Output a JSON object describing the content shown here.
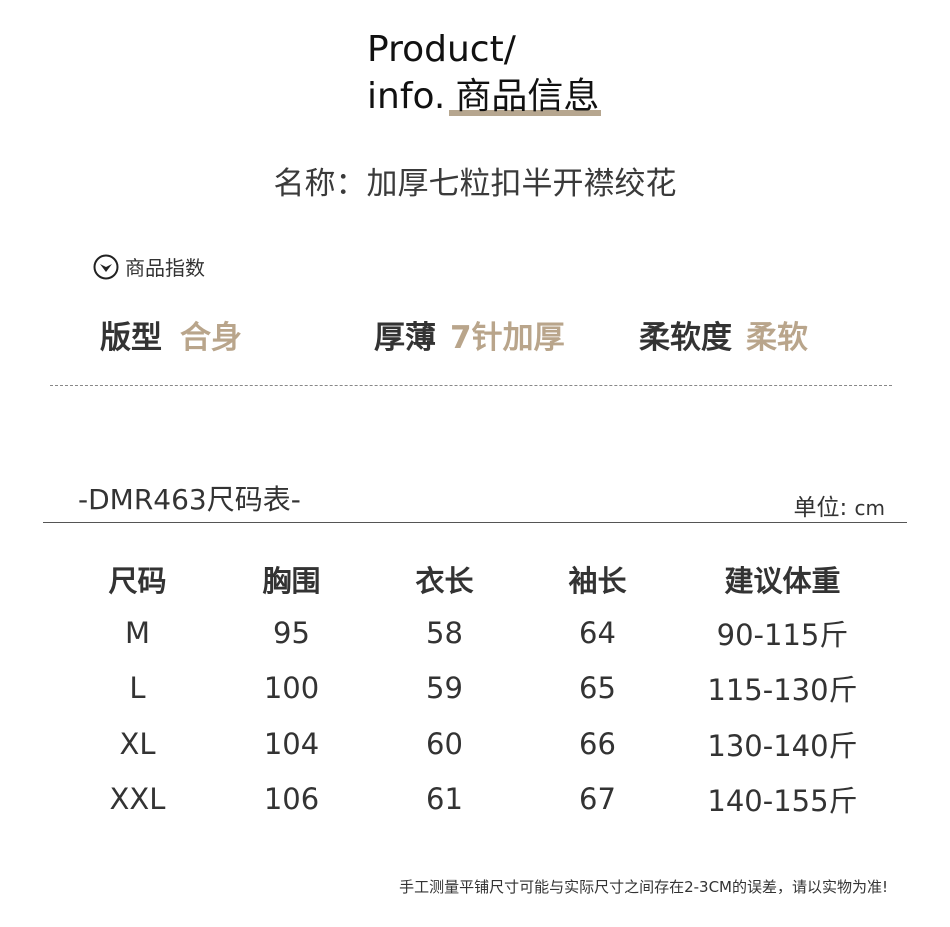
{
  "header": {
    "en_line1": "Product/",
    "en_line2": "info.",
    "cn_title": "商品信息",
    "accent": "#b6a68f"
  },
  "product_name": "名称：加厚七粒扣半开襟绞花",
  "index_section": {
    "icon": "chevron-down-circle-icon",
    "label": "商品指数"
  },
  "attributes": [
    {
      "label": "版型",
      "value": "合身"
    },
    {
      "label": "厚薄",
      "value": "7针加厚"
    },
    {
      "label": "柔软度",
      "value": "柔软"
    }
  ],
  "size_chart": {
    "title": "-DMR463尺码表-",
    "unit_label": "单位:",
    "unit": "cm",
    "headers": [
      "尺码",
      "胸围",
      "衣长",
      "袖长",
      "建议体重"
    ],
    "rows": [
      [
        "M",
        "95",
        "58",
        "64",
        "90-115斤"
      ],
      [
        "L",
        "100",
        "59",
        "65",
        "115-130斤"
      ],
      [
        "XL",
        "104",
        "60",
        "66",
        "130-140斤"
      ],
      [
        "XXL",
        "106",
        "61",
        "67",
        "140-155斤"
      ]
    ]
  },
  "footnote": "手工测量平铺尺寸可能与实际尺寸之间存在2-3CM的误差，请以实物为准!",
  "colors": {
    "value": "#b9a58b",
    "text": "#333333"
  }
}
